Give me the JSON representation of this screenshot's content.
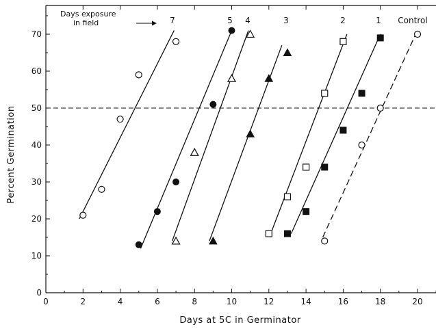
{
  "chart_data": {
    "type": "scatter",
    "title": "",
    "xlabel": "Days at 5C in Germinator",
    "ylabel": "Percent Germination",
    "xlim": [
      0,
      21
    ],
    "ylim": [
      0,
      75
    ],
    "xticks": [
      0,
      2,
      4,
      6,
      8,
      10,
      12,
      14,
      16,
      18,
      20
    ],
    "yticks": [
      0,
      10,
      20,
      30,
      40,
      50,
      60,
      70
    ],
    "grid": false,
    "reference_line": {
      "y": 50,
      "style": "dashed"
    },
    "legend_note": {
      "line1": "Days exposure",
      "line2": "in field"
    },
    "series": [
      {
        "name": "7",
        "marker": "circle-open",
        "line_style": "solid",
        "points": [
          [
            2,
            21
          ],
          [
            3,
            28
          ],
          [
            4,
            47
          ],
          [
            5,
            59
          ],
          [
            7,
            68
          ]
        ],
        "fit": [
          [
            1.8,
            20
          ],
          [
            6.9,
            71
          ]
        ]
      },
      {
        "name": "5",
        "marker": "circle-filled",
        "line_style": "solid",
        "points": [
          [
            5,
            13
          ],
          [
            6,
            22
          ],
          [
            7,
            30
          ],
          [
            9,
            51
          ],
          [
            10,
            71
          ]
        ],
        "fit": [
          [
            5.1,
            12
          ],
          [
            10.0,
            71
          ]
        ]
      },
      {
        "name": "4",
        "marker": "triangle-open",
        "line_style": "solid",
        "points": [
          [
            7,
            14
          ],
          [
            8,
            38
          ],
          [
            10,
            58
          ],
          [
            11,
            70
          ]
        ],
        "fit": [
          [
            6.8,
            14
          ],
          [
            10.9,
            71
          ]
        ]
      },
      {
        "name": "3",
        "marker": "triangle-filled",
        "line_style": "solid",
        "points": [
          [
            9,
            14
          ],
          [
            11,
            43
          ],
          [
            12,
            58
          ],
          [
            13,
            65
          ]
        ],
        "fit": [
          [
            8.8,
            14
          ],
          [
            12.7,
            67
          ]
        ]
      },
      {
        "name": "2",
        "marker": "square-open",
        "line_style": "solid",
        "points": [
          [
            12,
            16
          ],
          [
            13,
            26
          ],
          [
            14,
            34
          ],
          [
            15,
            54
          ],
          [
            16,
            68
          ]
        ],
        "fit": [
          [
            12.1,
            16
          ],
          [
            16.2,
            70
          ]
        ]
      },
      {
        "name": "1",
        "marker": "square-filled",
        "line_style": "solid",
        "points": [
          [
            13,
            16
          ],
          [
            14,
            22
          ],
          [
            15,
            34
          ],
          [
            16,
            44
          ],
          [
            17,
            54
          ],
          [
            18,
            69
          ]
        ],
        "fit": [
          [
            13.2,
            16
          ],
          [
            18.0,
            70
          ]
        ]
      },
      {
        "name": "Control",
        "marker": "circle-open",
        "line_style": "dashed",
        "points": [
          [
            15,
            14
          ],
          [
            17,
            40
          ],
          [
            18,
            50
          ],
          [
            20,
            70
          ]
        ],
        "fit": [
          [
            14.9,
            15
          ],
          [
            19.9,
            70
          ]
        ]
      }
    ]
  }
}
